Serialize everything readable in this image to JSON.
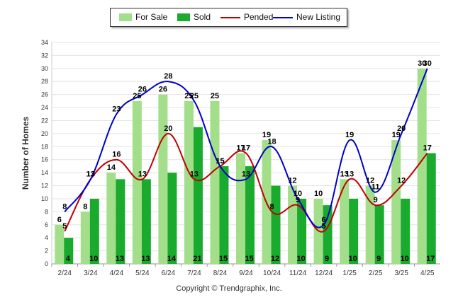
{
  "chart_data": {
    "type": "bar",
    "categories": [
      "2/24",
      "3/24",
      "4/24",
      "5/24",
      "6/24",
      "7/24",
      "8/24",
      "9/24",
      "10/24",
      "11/24",
      "12/24",
      "1/25",
      "2/25",
      "3/25",
      "4/25"
    ],
    "series": [
      {
        "name": "For Sale",
        "type": "bar",
        "color": "#a3df8a",
        "values": [
          6,
          8,
          14,
          25,
          26,
          25,
          25,
          17,
          19,
          12,
          10,
          13,
          12,
          19,
          30
        ]
      },
      {
        "name": "Sold",
        "type": "bar",
        "color": "#1aab2e",
        "values": [
          4,
          10,
          13,
          13,
          14,
          21,
          15,
          15,
          12,
          10,
          9,
          10,
          9,
          10,
          17
        ]
      },
      {
        "name": "Pended",
        "type": "line",
        "color": "#c00000",
        "values": [
          5,
          13,
          16,
          13,
          20,
          13,
          15,
          17,
          8,
          9,
          5,
          13,
          9,
          12,
          17
        ]
      },
      {
        "name": "New Listing",
        "type": "line",
        "color": "#0000cc",
        "values": [
          8,
          13,
          23,
          26,
          28,
          25,
          15,
          13,
          18,
          10,
          6,
          19,
          11,
          20,
          30
        ]
      }
    ],
    "ylabel": "Number of Homes",
    "ylim": [
      0,
      34
    ],
    "yticks": [
      0,
      2,
      4,
      6,
      8,
      10,
      12,
      14,
      16,
      18,
      20,
      22,
      24,
      26,
      28,
      30,
      32,
      34
    ],
    "grid": true,
    "legend_position": "top-center"
  },
  "legend": {
    "items": [
      {
        "label": "For Sale",
        "color": "#a3df8a",
        "kind": "rect"
      },
      {
        "label": "Sold",
        "color": "#1aab2e",
        "kind": "rect"
      },
      {
        "label": "Pended",
        "color": "#c00000",
        "kind": "line"
      },
      {
        "label": "New Listing",
        "color": "#0000cc",
        "kind": "line"
      }
    ]
  },
  "footer": {
    "copyright": "Copyright © Trendgraphix, Inc."
  }
}
